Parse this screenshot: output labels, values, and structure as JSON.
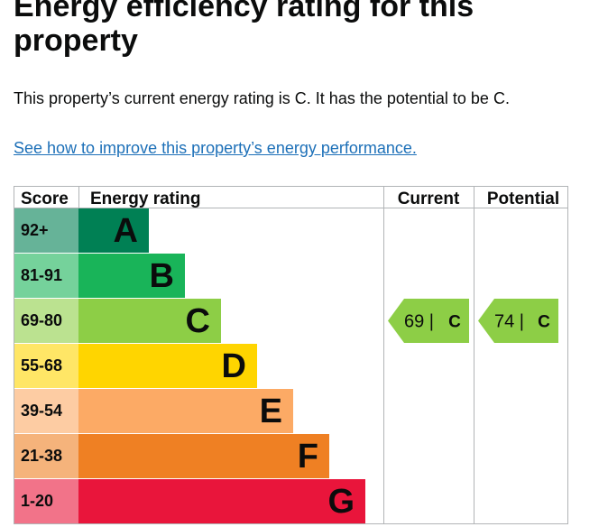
{
  "heading": {
    "title": "Energy efficiency rating for this property"
  },
  "summary": "This property’s current energy rating is C. It has the potential to be C.",
  "improve_link": "See how to improve this property’s energy performance.",
  "chart_data": {
    "type": "table",
    "headers": {
      "score": "Score",
      "rating": "Energy rating",
      "current": "Current",
      "potential": "Potential"
    },
    "bands": [
      {
        "score": "92+",
        "letter": "A",
        "color": "#008054",
        "score_color": "#66b398"
      },
      {
        "score": "81-91",
        "letter": "B",
        "color": "#19b459",
        "score_color": "#75d29b"
      },
      {
        "score": "69-80",
        "letter": "C",
        "color": "#8dce46",
        "score_color": "#bbe290"
      },
      {
        "score": "55-68",
        "letter": "D",
        "color": "#ffd500",
        "score_color": "#ffe666"
      },
      {
        "score": "39-54",
        "letter": "E",
        "color": "#fcaa65",
        "score_color": "#fdcca3"
      },
      {
        "score": "21-38",
        "letter": "F",
        "color": "#ef8023",
        "score_color": "#f5b37b"
      },
      {
        "score": "1-20",
        "letter": "G",
        "color": "#e9153b",
        "score_color": "#f27389"
      }
    ],
    "current": {
      "value": 69,
      "letter": "C",
      "color": "#8dce46"
    },
    "potential": {
      "value": 74,
      "letter": "C",
      "color": "#8dce46"
    }
  }
}
